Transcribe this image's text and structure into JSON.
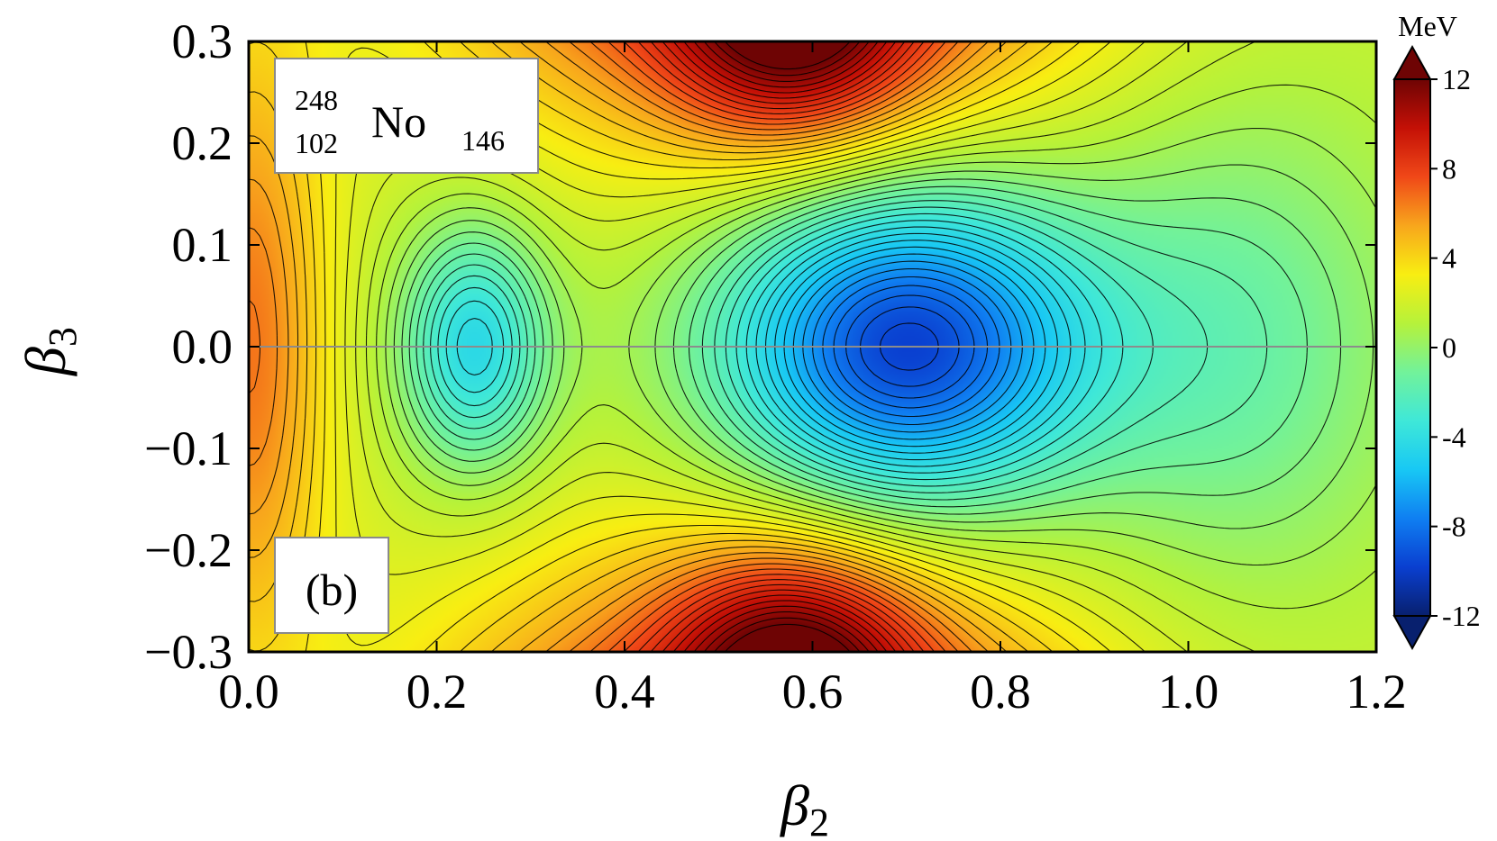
{
  "chart_data": {
    "type": "heatmap",
    "subtype": "filled-contour",
    "xlabel": "β",
    "xlabel_sub": "2",
    "ylabel": "β",
    "ylabel_sub": "3",
    "xlim": [
      0.0,
      1.2
    ],
    "ylim": [
      -0.3,
      0.3
    ],
    "x_ticks": [
      "0.0",
      "0.2",
      "0.4",
      "0.6",
      "0.8",
      "1.0",
      "1.2"
    ],
    "y_ticks": [
      "0.3",
      "0.2",
      "0.1",
      "0.0",
      "−0.1",
      "−0.2",
      "−0.3"
    ],
    "colorbar": {
      "unit": "MeV",
      "range": [
        -12,
        12
      ],
      "ticks": [
        "12",
        "8",
        "4",
        "0",
        "-4",
        "-8",
        "-12"
      ],
      "extend": "both",
      "colors": [
        "#08206e",
        "#0a3fd0",
        "#0f7ff2",
        "#18c8f4",
        "#3fe8d8",
        "#72f29a",
        "#b6f23a",
        "#f8ee12",
        "#f8a61c",
        "#f04818",
        "#c41006",
        "#6e0404"
      ]
    },
    "contour_spacing_MeV": 0.5,
    "reference_line": {
      "y": 0.0
    },
    "annotations": {
      "nucleus": {
        "A": "248",
        "Z": "102",
        "symbol": "No",
        "N": "146"
      },
      "panel": "(b)"
    },
    "features": [
      {
        "kind": "minimum",
        "beta2": 0.7,
        "beta3": 0.0,
        "energy_MeV": -9.5
      },
      {
        "kind": "local-minimum",
        "beta2": 0.24,
        "beta3": 0.0,
        "energy_MeV": -5.5
      },
      {
        "kind": "saddle",
        "beta2": 0.45,
        "beta3": 0.0,
        "energy_MeV": 1.5
      },
      {
        "kind": "plateau",
        "beta2": 1.05,
        "beta3": 0.0,
        "energy_MeV": -2.0
      },
      {
        "kind": "maximum",
        "beta2": 0.0,
        "beta3": 0.0,
        "energy_MeV": 6.5
      },
      {
        "kind": "maximum",
        "beta2": 0.58,
        "beta3": 0.3,
        "energy_MeV": 10.0
      },
      {
        "kind": "maximum",
        "beta2": 0.58,
        "beta3": -0.3,
        "energy_MeV": 10.0
      }
    ]
  }
}
